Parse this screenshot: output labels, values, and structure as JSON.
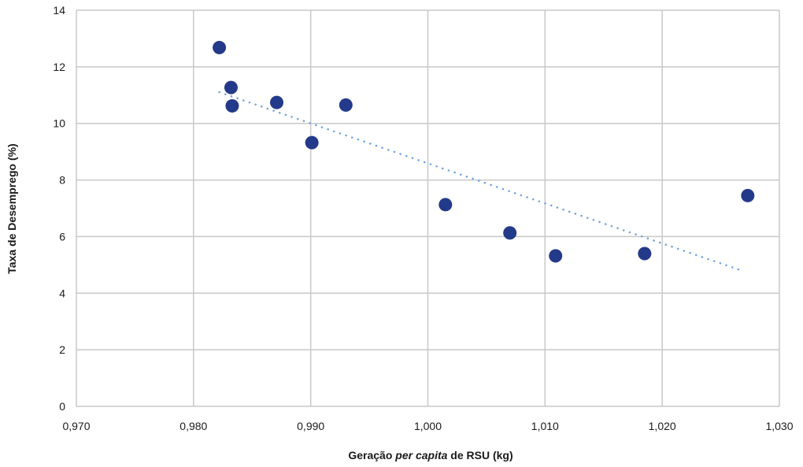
{
  "chart_data": {
    "type": "scatter",
    "xlabel_parts": [
      {
        "text": "Geração ",
        "italic": false
      },
      {
        "text": "per capita",
        "italic": true
      },
      {
        "text": " de RSU (kg)",
        "italic": false
      }
    ],
    "ylabel": "Taxa de Desemprego (%)",
    "xlim": [
      0.97,
      1.03
    ],
    "ylim": [
      0,
      14
    ],
    "x_ticks": [
      0.97,
      0.98,
      0.99,
      1.0,
      1.01,
      1.02,
      1.03
    ],
    "x_tick_labels": [
      "0,970",
      "0,980",
      "0,990",
      "1,000",
      "1,010",
      "1,020",
      "1,030"
    ],
    "y_ticks": [
      0,
      2,
      4,
      6,
      8,
      10,
      12,
      14
    ],
    "y_tick_labels": [
      "0",
      "2",
      "4",
      "6",
      "8",
      "10",
      "12",
      "14"
    ],
    "grid": true,
    "series": [
      {
        "x": [
          0.9822,
          0.9832,
          0.9833,
          0.9871,
          0.9901,
          0.993,
          1.0015,
          1.007,
          1.0109,
          1.0185,
          1.0273
        ],
        "y": [
          12.68,
          11.27,
          10.62,
          10.74,
          9.32,
          10.65,
          7.13,
          6.13,
          5.32,
          5.4,
          7.45
        ],
        "color": "#233a8a"
      }
    ],
    "trendline": {
      "type": "linear",
      "style": "dotted",
      "color": "#6fa0e0",
      "x_range": [
        0.9822,
        1.0265
      ]
    }
  }
}
